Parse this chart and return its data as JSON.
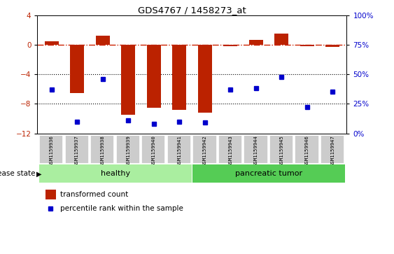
{
  "title": "GDS4767 / 1458273_at",
  "samples": [
    "GSM1159936",
    "GSM1159937",
    "GSM1159938",
    "GSM1159939",
    "GSM1159940",
    "GSM1159941",
    "GSM1159942",
    "GSM1159943",
    "GSM1159944",
    "GSM1159945",
    "GSM1159946",
    "GSM1159947"
  ],
  "transformed_count": [
    0.5,
    -6.5,
    1.2,
    -9.5,
    -8.5,
    -8.8,
    -9.2,
    -0.2,
    0.7,
    1.5,
    -0.2,
    -0.3
  ],
  "percentile_rank": [
    37,
    10,
    46,
    11,
    8,
    10,
    9,
    37,
    38,
    48,
    22,
    35
  ],
  "groups": [
    "healthy",
    "healthy",
    "healthy",
    "healthy",
    "healthy",
    "healthy",
    "pancreatic tumor",
    "pancreatic tumor",
    "pancreatic tumor",
    "pancreatic tumor",
    "pancreatic tumor",
    "pancreatic tumor"
  ],
  "ylim_left": [
    -12,
    4
  ],
  "ylim_right": [
    0,
    100
  ],
  "yticks_left": [
    -12,
    -8,
    -4,
    0,
    4
  ],
  "yticks_right": [
    0,
    25,
    50,
    75,
    100
  ],
  "bar_color": "#BB2200",
  "dot_color": "#0000CC",
  "hline_color": "#CC2200",
  "dotline_color": "black",
  "healthy_color": "#AAEEA0",
  "tumor_color": "#55CC55",
  "tick_bg_color": "#CCCCCC",
  "legend_red_label": "transformed count",
  "legend_blue_label": "percentile rank within the sample",
  "disease_state_label": "disease state",
  "healthy_label": "healthy",
  "tumor_label": "pancreatic tumor",
  "n_healthy": 6,
  "n_tumor": 6
}
